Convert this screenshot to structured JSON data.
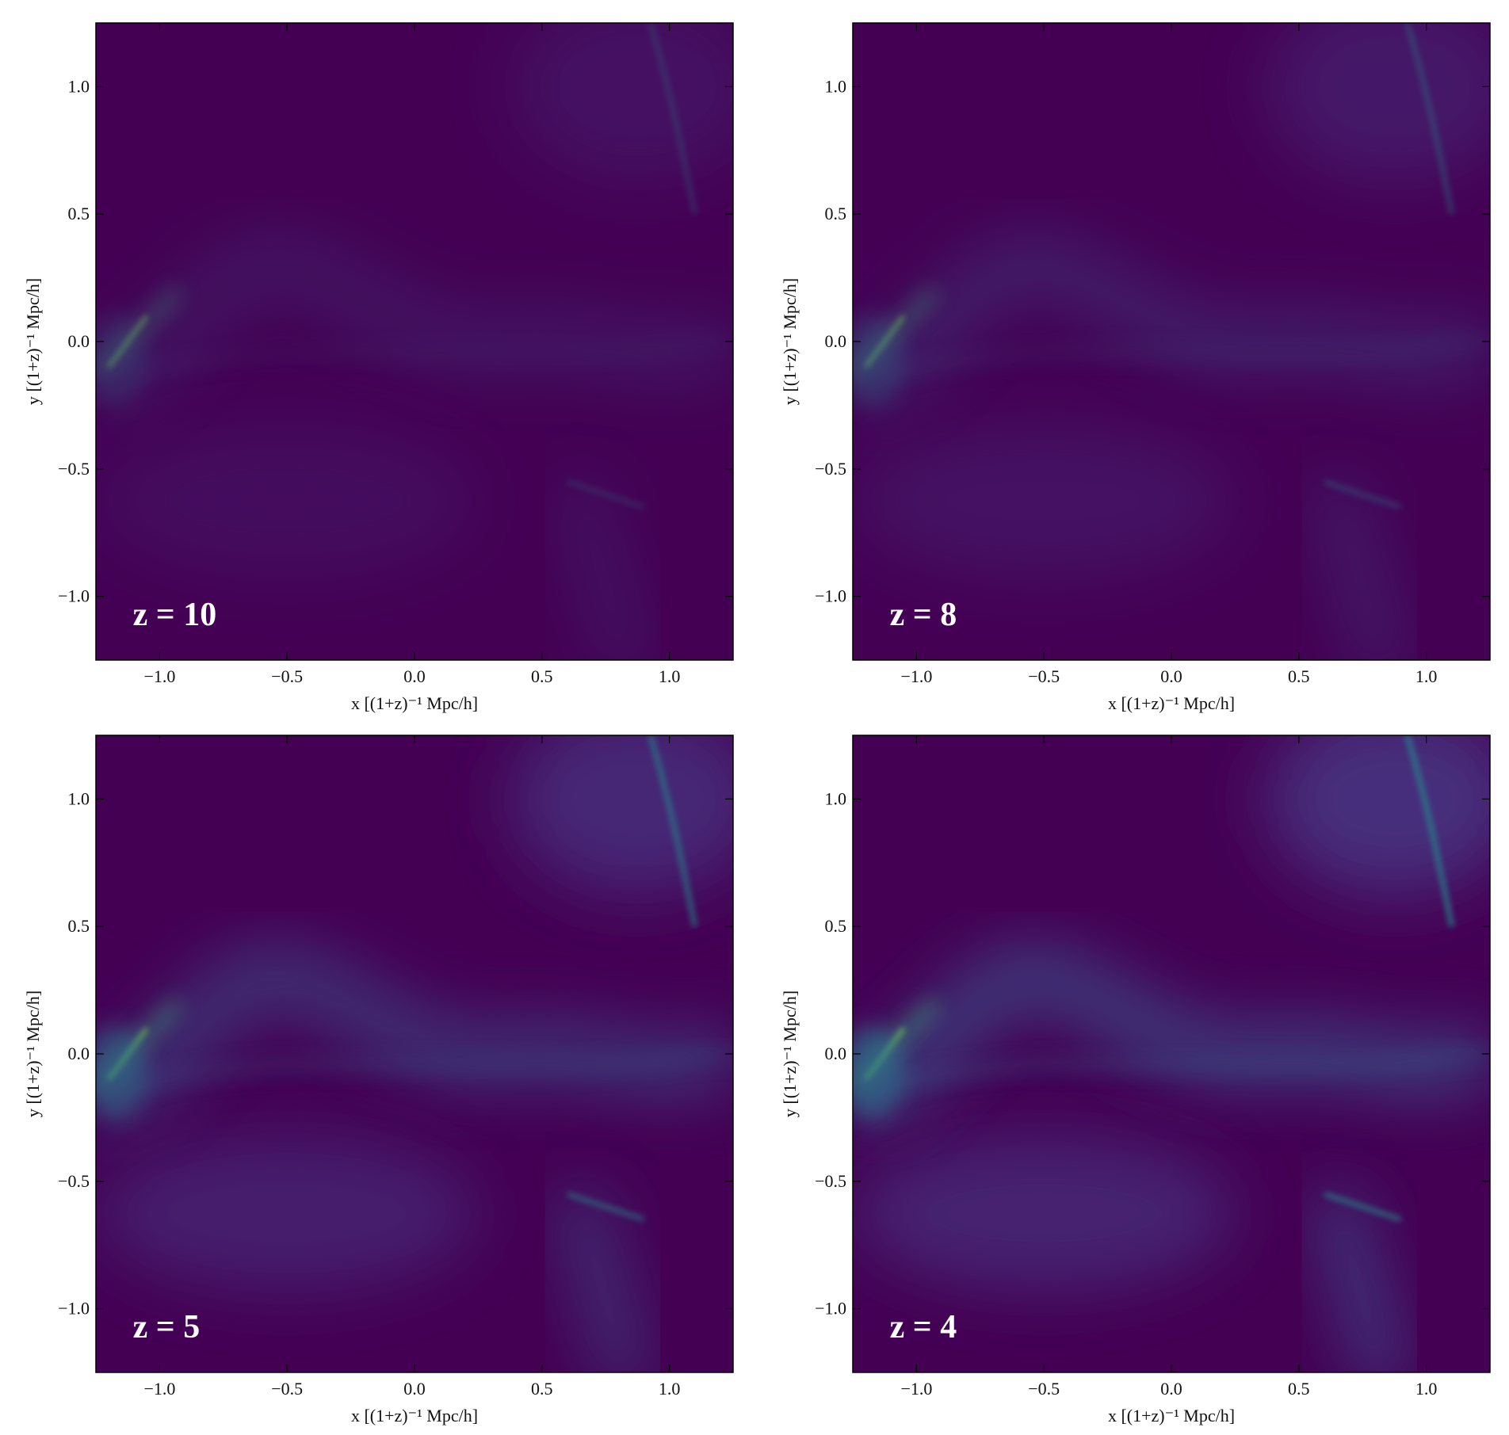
{
  "chart_data": [
    {
      "type": "image",
      "annotation": "z = 10",
      "xlabel": "x [(1+z)⁻¹ Mpc/h]",
      "ylabel": "y [(1+z)⁻¹ Mpc/h]",
      "xlim": [
        -1.25,
        1.25
      ],
      "ylim": [
        -1.25,
        1.25
      ],
      "xticks": [
        {
          "value": -1,
          "label": "−1.0"
        },
        {
          "value": -0.5,
          "label": "−0.5"
        },
        {
          "value": 0,
          "label": "0.0"
        },
        0.5,
        {
          "value": 1,
          "label": "1.0"
        }
      ],
      "yticks": [
        {
          "value": -1,
          "label": "−1.0"
        },
        {
          "value": -0.5,
          "label": "−0.5"
        },
        {
          "value": 0,
          "label": "0.0"
        },
        0.5,
        {
          "value": 1,
          "label": "1.0"
        }
      ]
    },
    {
      "type": "image",
      "annotation": "z = 8",
      "xlabel": "x [(1+z)⁻¹ Mpc/h]",
      "ylabel": "y [(1+z)⁻¹ Mpc/h]",
      "xlim": [
        -1.25,
        1.25
      ],
      "ylim": [
        -1.25,
        1.25
      ],
      "xticks": [
        {
          "value": -1,
          "label": "−1.0"
        },
        {
          "value": -0.5,
          "label": "−0.5"
        },
        {
          "value": 0,
          "label": "0.0"
        },
        0.5,
        {
          "value": 1,
          "label": "1.0"
        }
      ],
      "yticks": [
        {
          "value": -1,
          "label": "−1.0"
        },
        {
          "value": -0.5,
          "label": "−0.5"
        },
        {
          "value": 0,
          "label": "0.0"
        },
        0.5,
        {
          "value": 1,
          "label": "1.0"
        }
      ]
    },
    {
      "type": "image",
      "annotation": "z = 5",
      "xlabel": "x [(1+z)⁻¹ Mpc/h]",
      "ylabel": "y [(1+z)⁻¹ Mpc/h]",
      "xlim": [
        -1.25,
        1.25
      ],
      "ylim": [
        -1.25,
        1.25
      ],
      "xticks": [
        {
          "value": -1,
          "label": "−1.0"
        },
        {
          "value": -0.5,
          "label": "−0.5"
        },
        {
          "value": 0,
          "label": "0.0"
        },
        0.5,
        {
          "value": 1,
          "label": "1.0"
        }
      ],
      "yticks": [
        {
          "value": -1,
          "label": "−1.0"
        },
        {
          "value": -0.5,
          "label": "−0.5"
        },
        {
          "value": 0,
          "label": "0.0"
        },
        0.5,
        {
          "value": 1,
          "label": "1.0"
        }
      ]
    },
    {
      "type": "image",
      "annotation": "z = 4",
      "xlabel": "x [(1+z)⁻¹ Mpc/h]",
      "ylabel": "y [(1+z)⁻¹ Mpc/h]",
      "xlim": [
        -1.25,
        1.25
      ],
      "ylim": [
        -1.25,
        1.25
      ],
      "xticks": [
        {
          "value": -1,
          "label": "−1.0"
        },
        {
          "value": -0.5,
          "label": "−0.5"
        },
        {
          "value": 0,
          "label": "0.0"
        },
        0.5,
        {
          "value": 1,
          "label": "1.0"
        }
      ],
      "yticks": [
        {
          "value": -1,
          "label": "−1.0"
        },
        {
          "value": -0.5,
          "label": "−0.5"
        },
        {
          "value": 0,
          "label": "0.0"
        },
        0.5,
        {
          "value": 1,
          "label": "1.0"
        }
      ]
    }
  ]
}
